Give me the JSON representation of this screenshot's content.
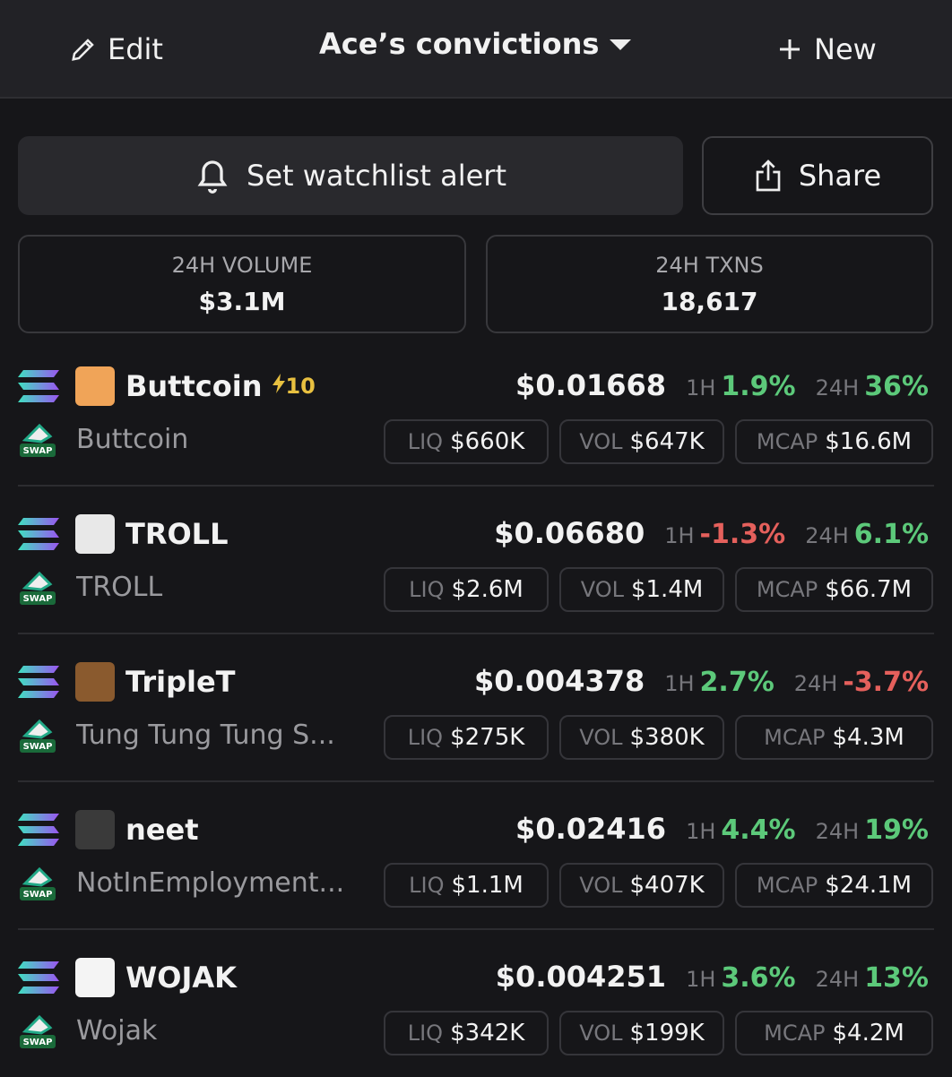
{
  "header": {
    "edit": "Edit",
    "title": "Ace’s convictions",
    "new": "New"
  },
  "actions": {
    "alert": "Set watchlist alert",
    "share": "Share"
  },
  "stats": [
    {
      "label": "24H VOLUME",
      "value": "$3.1M"
    },
    {
      "label": "24H TXNS",
      "value": "18,617"
    }
  ],
  "labels": {
    "h1": "1H",
    "h24": "24H",
    "liq": "LIQ",
    "vol": "VOL",
    "mcap": "MCAP"
  },
  "tokens": [
    {
      "symbol": "Buttcoin",
      "badge": "10",
      "name": "Buttcoin",
      "price": "$0.01668",
      "h1": "1.9%",
      "h24": "36%",
      "liq": "$660K",
      "vol": "$647K",
      "mcap": "$16.6M",
      "avatar_color": "#f0a458"
    },
    {
      "symbol": "TROLL",
      "name": "TROLL",
      "price": "$0.06680",
      "h1": "-1.3%",
      "h24": "6.1%",
      "liq": "$2.6M",
      "vol": "$1.4M",
      "mcap": "$66.7M",
      "avatar_color": "#e8e8e8"
    },
    {
      "symbol": "TripleT",
      "name": "Tung Tung Tung S...",
      "price": "$0.004378",
      "h1": "2.7%",
      "h24": "-3.7%",
      "liq": "$275K",
      "vol": "$380K",
      "mcap": "$4.3M",
      "avatar_color": "#8a5a2e"
    },
    {
      "symbol": "neet",
      "name": "NotInEmployment...",
      "price": "$0.02416",
      "h1": "4.4%",
      "h24": "19%",
      "liq": "$1.1M",
      "vol": "$407K",
      "mcap": "$24.1M",
      "avatar_color": "#3a3a3a"
    },
    {
      "symbol": "WOJAK",
      "name": "Wojak",
      "price": "$0.004251",
      "h1": "3.6%",
      "h24": "13%",
      "liq": "$342K",
      "vol": "$199K",
      "mcap": "$4.2M",
      "avatar_color": "#f4f4f4"
    }
  ]
}
